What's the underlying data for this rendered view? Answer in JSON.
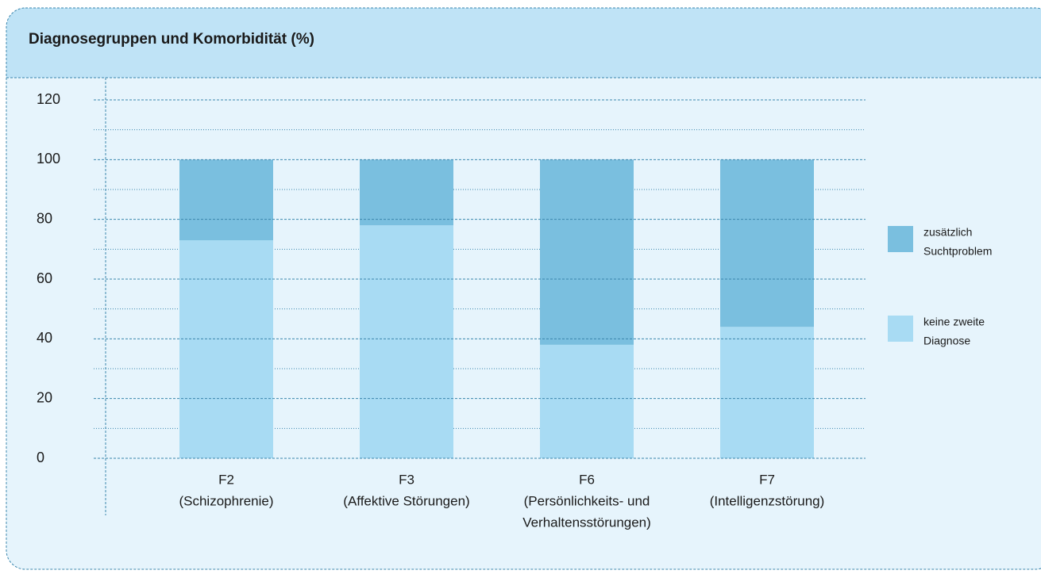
{
  "chart_data": {
    "type": "stacked_bar",
    "title": "Diagnosegruppen und Komorbidität (%)",
    "categories": [
      [
        "F2",
        "(Schizophrenie)"
      ],
      [
        "F3",
        "(Affektive Störungen)"
      ],
      [
        "F6",
        "(Persönlichkeits- und",
        "Verhaltensstörungen)"
      ],
      [
        "F7",
        "(Intelligenzstörung)"
      ]
    ],
    "series": [
      {
        "name": [
          "keine zweite",
          "Diagnose"
        ],
        "color": "#a8dbf3",
        "values": [
          73,
          78,
          38,
          44
        ]
      },
      {
        "name": [
          "zusätzlich",
          "Suchtproblem"
        ],
        "color": "#7abfdf",
        "values": [
          27,
          22,
          62,
          56
        ]
      }
    ],
    "ylim": [
      0,
      120
    ],
    "yticks": [
      0,
      20,
      40,
      60,
      80,
      100,
      120
    ],
    "minor_yticks": [
      10,
      30,
      50,
      70,
      90,
      110
    ],
    "grid": true,
    "legend": "right"
  }
}
